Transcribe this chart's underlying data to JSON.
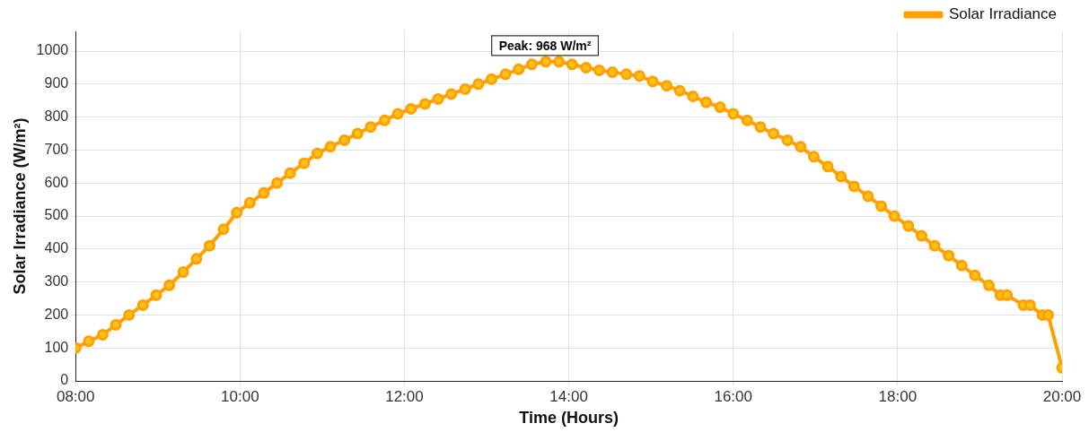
{
  "chart_data": {
    "type": "line",
    "xlabel": "Time (Hours)",
    "ylabel": "Solar Irradiance (W/m²)",
    "annotations": [
      {
        "text": "Peak: 968 W/m²",
        "x": 13.71,
        "y": 968
      }
    ],
    "xlim": [
      8,
      20
    ],
    "xticks": [
      {
        "value": 8,
        "label": "08:00"
      },
      {
        "value": 10,
        "label": "10:00"
      },
      {
        "value": 12,
        "label": "12:00"
      },
      {
        "value": 14,
        "label": "14:00"
      },
      {
        "value": 16,
        "label": "16:00"
      },
      {
        "value": 18,
        "label": "18:00"
      },
      {
        "value": 20,
        "label": "20:00"
      }
    ],
    "ylim": [
      0,
      1060
    ],
    "yticks": [
      0,
      100,
      200,
      300,
      400,
      500,
      600,
      700,
      800,
      900,
      1000
    ],
    "grid": true,
    "legend": "top right",
    "marker": "circle",
    "line_style": "solid",
    "series": [
      {
        "name": "Solar Irradiance",
        "color": "#ffa000",
        "x": [
          8,
          8.16,
          8.33,
          8.49,
          8.65,
          8.82,
          8.98,
          9.14,
          9.31,
          9.47,
          9.63,
          9.8,
          9.96,
          10.12,
          10.29,
          10.45,
          10.61,
          10.78,
          10.94,
          11.1,
          11.27,
          11.43,
          11.59,
          11.76,
          11.92,
          12.08,
          12.25,
          12.41,
          12.57,
          12.74,
          12.9,
          13.06,
          13.23,
          13.39,
          13.55,
          13.72,
          13.88,
          14.04,
          14.21,
          14.37,
          14.53,
          14.7,
          14.86,
          15.02,
          15.19,
          15.35,
          15.51,
          15.67,
          15.84,
          16,
          16.17,
          16.33,
          16.49,
          16.66,
          16.82,
          16.98,
          17.15,
          17.31,
          17.47,
          17.64,
          17.8,
          17.96,
          18.13,
          18.29,
          18.45,
          18.62,
          18.78,
          18.94,
          19.11,
          19.25,
          19.33,
          19.53,
          19.61,
          19.76,
          19.83,
          20
        ],
        "values": [
          100,
          120,
          140,
          170,
          200,
          230,
          260,
          290,
          330,
          370,
          410,
          460,
          510,
          540,
          570,
          600,
          630,
          660,
          690,
          710,
          730,
          750,
          770,
          790,
          810,
          825,
          840,
          855,
          870,
          885,
          900,
          915,
          930,
          945,
          960,
          968,
          968,
          960,
          950,
          942,
          936,
          930,
          925,
          908,
          895,
          880,
          863,
          845,
          830,
          810,
          790,
          770,
          750,
          730,
          710,
          680,
          650,
          620,
          590,
          560,
          530,
          500,
          470,
          440,
          410,
          380,
          350,
          320,
          290,
          260,
          260,
          230,
          230,
          200,
          200,
          40
        ]
      }
    ]
  }
}
